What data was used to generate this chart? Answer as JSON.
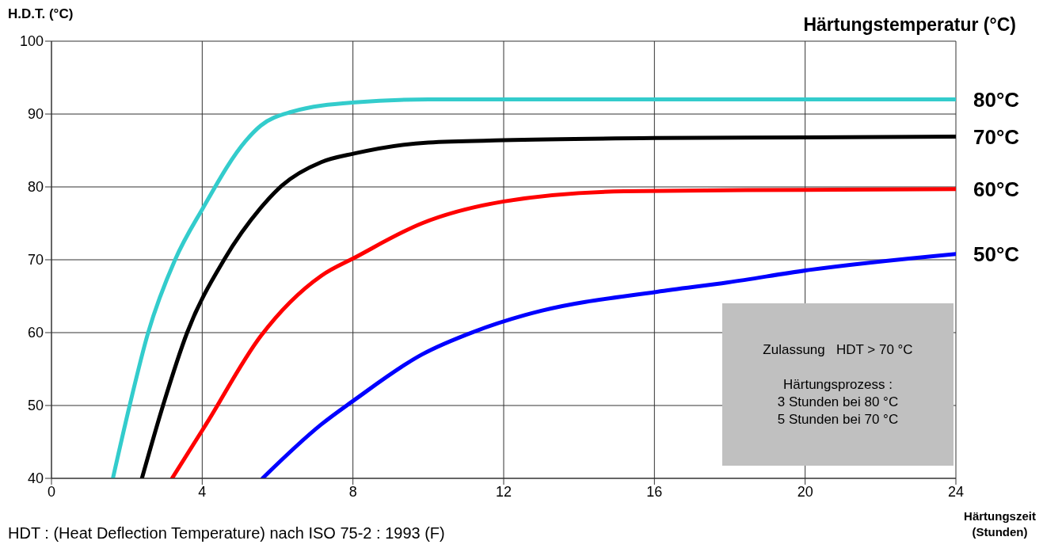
{
  "chart_data": {
    "type": "line",
    "ylabel": "H.D.T. (°C)",
    "xlabel": "Härtungszeit (Stunden)",
    "legend_title": "Härtungstemperatur (°C)",
    "xlim": [
      0,
      24
    ],
    "xticks": [
      0,
      4,
      8,
      12,
      16,
      20,
      24
    ],
    "ylim": [
      40,
      100
    ],
    "yticks": [
      40,
      50,
      60,
      70,
      80,
      90,
      100
    ],
    "grid": true,
    "marker": "none",
    "line_style": "solid",
    "series": [
      {
        "name": "80°C",
        "color": "#33cccc",
        "x": [
          1.63,
          2.07,
          2.56,
          3.28,
          4.02,
          5.15,
          5.55,
          6.37,
          8.05,
          10,
          12,
          16,
          20,
          24
        ],
        "values": [
          40,
          49.9,
          59.9,
          70,
          77.1,
          86.3,
          88.4,
          90.3,
          91.6,
          92,
          92,
          92,
          92,
          92
        ]
      },
      {
        "name": "70°C",
        "color": "#000000",
        "x": [
          2.4,
          2.96,
          3.6,
          4.58,
          5.55,
          6.12,
          7.16,
          8.05,
          10,
          12,
          16,
          20,
          24
        ],
        "values": [
          40,
          50,
          60,
          70,
          77.1,
          80.2,
          83.4,
          84.6,
          86.1,
          86.4,
          86.7,
          86.8,
          86.9
        ]
      },
      {
        "name": "60°C",
        "color": "#ff0000",
        "x": [
          3.2,
          4.1,
          5.55,
          7.16,
          8.05,
          9.83,
          12,
          15.2,
          20,
          24
        ],
        "values": [
          40,
          47.4,
          59.5,
          67.8,
          70.3,
          75,
          78,
          79.4,
          79.6,
          79.7
        ]
      },
      {
        "name": "50°C",
        "color": "#0000ff",
        "x": [
          5.6,
          7.16,
          8.05,
          9.83,
          11.2,
          12.56,
          13,
          16.07,
          17.96,
          20.1,
          24
        ],
        "values": [
          40,
          47.4,
          50.8,
          57,
          60.1,
          62.4,
          63,
          65.6,
          66.9,
          68.6,
          70.8
        ]
      }
    ],
    "annotations": [
      "Zulassung   HDT > 70 °C\n\nHärtungsprozess :\n3 Stunden bei 80 °C\n5 Stunden bei 70 °C",
      "HDT : (Heat Deflection Temperature) nach  ISO 75-2 : 1993 (F)"
    ]
  }
}
